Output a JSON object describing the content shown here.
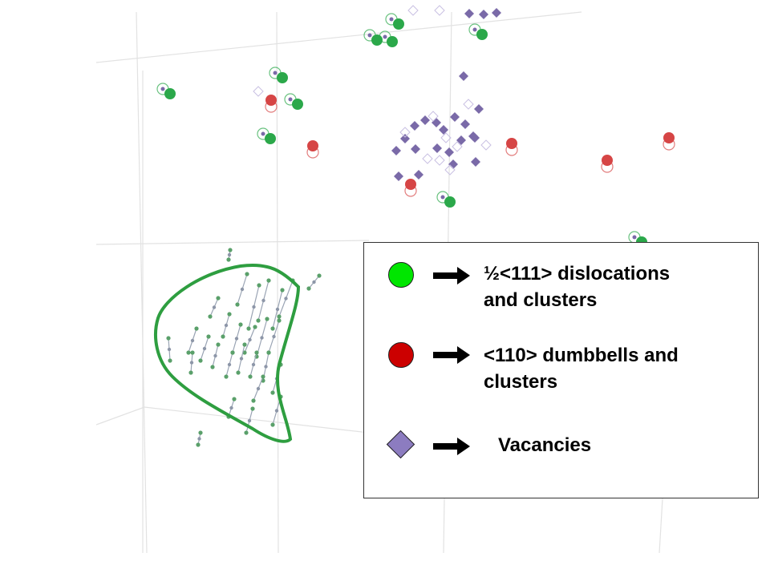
{
  "colors": {
    "sia_green": "#00e600",
    "sia_red": "#cc0000",
    "vacancy_purple": "#8c7cc0",
    "scene_green": "#2ba84a",
    "scene_red": "#d64545",
    "scene_purple": "#7a6aa8",
    "grid_line": "#e2e2e2",
    "region_outline": "#2e9e40"
  },
  "legend": {
    "items": [
      {
        "marker": "green-circle",
        "label_line1": "½<111> dislocations",
        "label_line2": "and clusters",
        "color": "#00e600"
      },
      {
        "marker": "red-circle",
        "label_line1": "<110> dumbbells and",
        "label_line2": "clusters",
        "color": "#cc0000"
      },
      {
        "marker": "purple-diamond",
        "label_line1": "Vacancies",
        "label_line2": "",
        "color": "#8c7cc0"
      }
    ]
  }
}
